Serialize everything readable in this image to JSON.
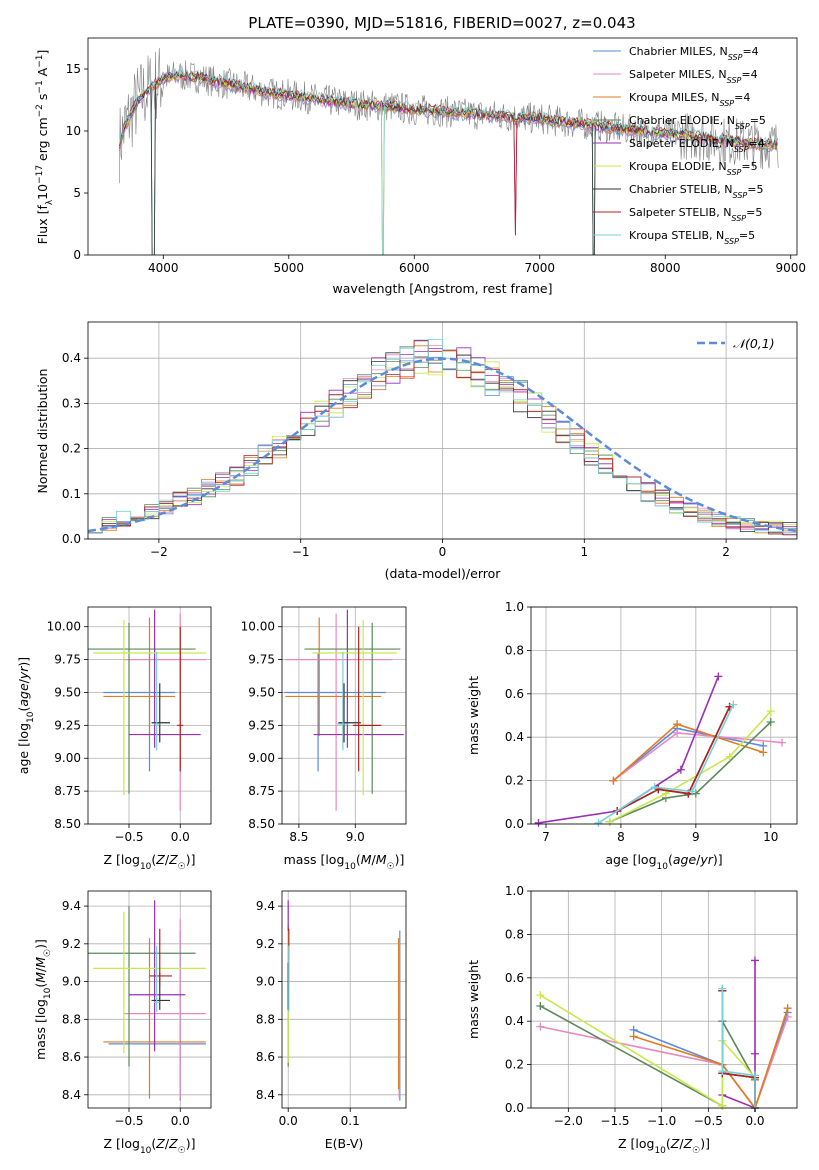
{
  "figure": {
    "title": "PLATE=0390, MJD=51816, FIBERID=0027, z=0.043"
  },
  "colors": {
    "Chabrier MILES": "#5b8bdc",
    "Salpeter MILES": "#e78ac3",
    "Kroupa MILES": "#e07b20",
    "Chabrier ELODIE": "#5a8a5a",
    "Salpeter ELODIE": "#9a2fb5",
    "Kroupa ELODIE": "#c8e84a",
    "Chabrier STELIB": "#333333",
    "Salpeter STELIB": "#b22222",
    "Kroupa STELIB": "#78d0d8",
    "data": "#808080",
    "normal": "#5b8bdc"
  },
  "chart_data": [
    {
      "id": "spectrum",
      "type": "line",
      "xlabel": "wavelength [Angstrom, rest frame]",
      "ylabel": "Flux [f_λ10^-17 erg cm^-2 s^-1 A^-1]",
      "xlim": [
        3400,
        9050
      ],
      "ylim": [
        0,
        17.5
      ],
      "xticks": [
        4000,
        5000,
        6000,
        7000,
        8000,
        9000
      ],
      "yticks": [
        0,
        5,
        10,
        15
      ],
      "legend_loc": "right",
      "legend": [
        {
          "name": "Chabrier MILES",
          "nssp": "4"
        },
        {
          "name": "Salpeter MILES",
          "nssp": "4"
        },
        {
          "name": "Kroupa MILES",
          "nssp": "4"
        },
        {
          "name": "Chabrier ELODIE",
          "nssp": "5"
        },
        {
          "name": "Salpeter ELODIE",
          "nssp": "4"
        },
        {
          "name": "Kroupa ELODIE",
          "nssp": "5"
        },
        {
          "name": "Chabrier STELIB",
          "nssp": "5"
        },
        {
          "name": "Salpeter STELIB",
          "nssp": "5"
        },
        {
          "name": "Kroupa STELIB",
          "nssp": "5"
        }
      ],
      "continuum": {
        "x": [
          3650,
          3700,
          3800,
          3900,
          4000,
          4100,
          4200,
          4300,
          4400,
          4500,
          4600,
          4700,
          4800,
          4900,
          5000,
          5200,
          5400,
          5600,
          5800,
          6000,
          6200,
          6400,
          6600,
          6800,
          7000,
          7200,
          7400,
          7600,
          7800,
          8000,
          8200,
          8400,
          8600,
          8800
        ],
        "y": [
          9.0,
          10.5,
          12.5,
          13.5,
          14.2,
          14.5,
          14.4,
          14.3,
          14.0,
          13.8,
          13.6,
          13.4,
          13.2,
          13.0,
          12.9,
          12.6,
          12.3,
          12.1,
          12.0,
          11.7,
          11.6,
          11.4,
          11.3,
          11.1,
          11.0,
          10.7,
          10.5,
          10.2,
          10.0,
          9.8,
          9.6,
          9.3,
          9.1,
          8.9
        ]
      },
      "model_dips": [
        {
          "x": 3920,
          "depth": 17.5
        },
        {
          "x": 5755,
          "depth": 17.5
        },
        {
          "x": 6810,
          "depth": 9.5
        },
        {
          "x": 7430,
          "depth": 17.5
        }
      ]
    },
    {
      "id": "residuals",
      "type": "line",
      "xlabel": "(data-model)/error",
      "ylabel": "Normed distribution",
      "xlim": [
        -2.5,
        2.5
      ],
      "ylim": [
        0,
        0.48
      ],
      "xticks": [
        -2,
        -1,
        0,
        1,
        2
      ],
      "yticks": [
        0.0,
        0.1,
        0.2,
        0.3,
        0.4
      ],
      "legend_label": "𝒩(0,1)",
      "legend_loc": "top-right",
      "bins_center": [
        -2.45,
        -2.35,
        -2.25,
        -2.15,
        -2.05,
        -1.95,
        -1.85,
        -1.75,
        -1.65,
        -1.55,
        -1.45,
        -1.35,
        -1.25,
        -1.15,
        -1.05,
        -0.95,
        -0.85,
        -0.75,
        -0.65,
        -0.55,
        -0.45,
        -0.35,
        -0.25,
        -0.15,
        -0.05,
        0.05,
        0.15,
        0.25,
        0.35,
        0.45,
        0.55,
        0.65,
        0.75,
        0.85,
        0.95,
        1.05,
        1.15,
        1.25,
        1.35,
        1.45,
        1.55,
        1.65,
        1.75,
        1.85,
        1.95,
        2.05,
        2.15,
        2.25,
        2.35,
        2.45
      ],
      "hist_base": [
        0.03,
        0.035,
        0.045,
        0.055,
        0.06,
        0.07,
        0.085,
        0.095,
        0.115,
        0.125,
        0.14,
        0.16,
        0.185,
        0.205,
        0.235,
        0.255,
        0.275,
        0.3,
        0.325,
        0.345,
        0.365,
        0.385,
        0.395,
        0.4,
        0.405,
        0.4,
        0.39,
        0.375,
        0.355,
        0.335,
        0.315,
        0.29,
        0.265,
        0.24,
        0.215,
        0.19,
        0.165,
        0.145,
        0.125,
        0.105,
        0.09,
        0.075,
        0.062,
        0.052,
        0.044,
        0.038,
        0.032,
        0.028,
        0.024,
        0.022
      ]
    },
    {
      "id": "age-Z",
      "type": "scatter",
      "xlabel": "Z [log10(Z/Z☉)]",
      "ylabel": "age [log10(age/yr)]",
      "xlim": [
        -0.9,
        0.3
      ],
      "ylim": [
        8.5,
        10.15
      ],
      "xticks": [
        -0.5,
        0.0
      ],
      "yticks": [
        8.5,
        8.75,
        9.0,
        9.25,
        9.5,
        9.75,
        10.0
      ],
      "points": [
        {
          "model": "Chabrier MILES",
          "x": -0.3,
          "xerr": [
            0.45,
            0.25
          ],
          "y": 9.5,
          "yerr": [
            0.6,
            0.3
          ]
        },
        {
          "model": "Salpeter MILES",
          "x": 0.0,
          "xerr": [
            0.55,
            0.25
          ],
          "y": 9.75,
          "yerr": [
            1.15,
            0.35
          ]
        },
        {
          "model": "Kroupa MILES",
          "x": -0.3,
          "xerr": [
            0.45,
            0.25
          ],
          "y": 9.47,
          "yerr": [
            0.3,
            0.6
          ]
        },
        {
          "model": "Chabrier ELODIE",
          "x": -0.5,
          "xerr": [
            0.4,
            0.65
          ],
          "y": 9.83,
          "yerr": [
            1.1,
            0.2
          ]
        },
        {
          "model": "Salpeter ELODIE",
          "x": -0.25,
          "xerr": [
            0.25,
            0.45
          ],
          "y": 9.18,
          "yerr": [
            0.1,
            0.95
          ]
        },
        {
          "model": "Kroupa ELODIE",
          "x": -0.55,
          "xerr": [
            0.3,
            0.8
          ],
          "y": 9.8,
          "yerr": [
            1.08,
            0.25
          ]
        },
        {
          "model": "Chabrier STELIB",
          "x": -0.2,
          "xerr": [
            0.08,
            0.1
          ],
          "y": 9.27,
          "yerr": [
            0.15,
            0.3
          ]
        },
        {
          "model": "Salpeter STELIB",
          "x": 0.0,
          "xerr": [
            0.03,
            0.03
          ],
          "y": 9.25,
          "yerr": [
            0.35,
            0.75
          ]
        },
        {
          "model": "Kroupa STELIB",
          "x": -0.23,
          "xerr": [
            0.03,
            0.03
          ],
          "y": 9.26,
          "yerr": [
            0.2,
            0.55
          ]
        }
      ]
    },
    {
      "id": "age-mass",
      "type": "scatter",
      "xlabel": "mass [log10(M/M☉)]",
      "ylabel": "",
      "xlim": [
        8.35,
        9.45
      ],
      "ylim": [
        8.5,
        10.15
      ],
      "xticks": [
        8.5,
        9.0
      ],
      "yticks": [
        8.5,
        8.75,
        9.0,
        9.25,
        9.5,
        9.75,
        10.0
      ],
      "points": [
        {
          "model": "Chabrier MILES",
          "x": 8.67,
          "xerr": [
            0.3,
            0.6
          ],
          "y": 9.5,
          "yerr": [
            0.6,
            0.3
          ]
        },
        {
          "model": "Salpeter MILES",
          "x": 8.83,
          "xerr": [
            0.45,
            0.5
          ],
          "y": 9.75,
          "yerr": [
            1.15,
            0.35
          ]
        },
        {
          "model": "Kroupa MILES",
          "x": 8.68,
          "xerr": [
            0.3,
            0.55
          ],
          "y": 9.47,
          "yerr": [
            0.3,
            0.6
          ]
        },
        {
          "model": "Chabrier ELODIE",
          "x": 9.15,
          "xerr": [
            0.6,
            0.25
          ],
          "y": 9.83,
          "yerr": [
            1.1,
            0.2
          ]
        },
        {
          "model": "Salpeter ELODIE",
          "x": 8.93,
          "xerr": [
            0.3,
            0.5
          ],
          "y": 9.18,
          "yerr": [
            0.1,
            0.95
          ]
        },
        {
          "model": "Kroupa ELODIE",
          "x": 9.07,
          "xerr": [
            0.45,
            0.3
          ],
          "y": 9.8,
          "yerr": [
            1.08,
            0.25
          ]
        },
        {
          "model": "Chabrier STELIB",
          "x": 8.9,
          "xerr": [
            0.05,
            0.15
          ],
          "y": 9.27,
          "yerr": [
            0.15,
            0.3
          ]
        },
        {
          "model": "Salpeter STELIB",
          "x": 9.03,
          "xerr": [
            0.05,
            0.2
          ],
          "y": 9.25,
          "yerr": [
            0.35,
            0.75
          ]
        },
        {
          "model": "Kroupa STELIB",
          "x": 8.89,
          "xerr": [
            0.05,
            0.05
          ],
          "y": 9.26,
          "yerr": [
            0.2,
            0.55
          ]
        }
      ]
    },
    {
      "id": "mass-Z",
      "type": "scatter",
      "xlabel": "Z [log10(Z/Z☉)]",
      "ylabel": "mass [log10(M/M☉)]",
      "xlim": [
        -0.9,
        0.3
      ],
      "ylim": [
        8.33,
        9.48
      ],
      "xticks": [
        -0.5,
        0.0
      ],
      "yticks": [
        8.4,
        8.6,
        8.8,
        9.0,
        9.2,
        9.4
      ],
      "points": [
        {
          "model": "Chabrier MILES",
          "x": 0.0,
          "xerr": [
            0.7,
            0.25
          ],
          "y": 8.67,
          "yerr": [
            0.3,
            0.6
          ]
        },
        {
          "model": "Salpeter MILES",
          "x": 0.0,
          "xerr": [
            0.55,
            0.25
          ],
          "y": 8.83,
          "yerr": [
            0.45,
            0.5
          ]
        },
        {
          "model": "Kroupa MILES",
          "x": -0.3,
          "xerr": [
            0.45,
            0.55
          ],
          "y": 8.68,
          "yerr": [
            0.3,
            0.55
          ]
        },
        {
          "model": "Chabrier ELODIE",
          "x": -0.5,
          "xerr": [
            0.4,
            0.65
          ],
          "y": 9.15,
          "yerr": [
            0.6,
            0.25
          ]
        },
        {
          "model": "Salpeter ELODIE",
          "x": -0.25,
          "xerr": [
            0.25,
            0.3
          ],
          "y": 8.93,
          "yerr": [
            0.3,
            0.5
          ]
        },
        {
          "model": "Kroupa ELODIE",
          "x": -0.55,
          "xerr": [
            0.3,
            0.8
          ],
          "y": 9.07,
          "yerr": [
            0.45,
            0.3
          ]
        },
        {
          "model": "Chabrier STELIB",
          "x": -0.2,
          "xerr": [
            0.08,
            0.1
          ],
          "y": 8.9,
          "yerr": [
            0.05,
            0.15
          ]
        },
        {
          "model": "Salpeter STELIB",
          "x": -0.2,
          "xerr": [
            0.1,
            0.12
          ],
          "y": 9.03,
          "yerr": [
            0.05,
            0.25
          ]
        },
        {
          "model": "Kroupa STELIB",
          "x": -0.23,
          "xerr": [
            0.03,
            0.03
          ],
          "y": 8.89,
          "yerr": [
            0.05,
            0.3
          ]
        }
      ]
    },
    {
      "id": "mass-ebv",
      "type": "scatter",
      "xlabel": "E(B-V)",
      "ylabel": "",
      "xlim": [
        -0.01,
        0.19
      ],
      "ylim": [
        8.33,
        9.48
      ],
      "xticks": [
        0.0,
        0.1
      ],
      "yticks": [
        8.4,
        8.6,
        8.8,
        9.0,
        9.2,
        9.4
      ],
      "points": [
        {
          "model": "Chabrier MILES",
          "x": 0.18,
          "y": 8.67,
          "yerr": [
            0.3,
            0.6
          ]
        },
        {
          "model": "Salpeter MILES",
          "x": 0.179,
          "y": 8.83,
          "yerr": [
            0.45,
            0.4
          ]
        },
        {
          "model": "Kroupa MILES",
          "x": 0.178,
          "y": 8.68,
          "yerr": [
            0.25,
            0.55
          ]
        },
        {
          "model": "Chabrier ELODIE",
          "x": 0.0,
          "y": 9.15,
          "yerr": [
            0.6,
            0.15
          ]
        },
        {
          "model": "Salpeter ELODIE",
          "x": 0.0,
          "y": 8.93,
          "yerr": [
            0.05,
            0.5
          ]
        },
        {
          "model": "Kroupa ELODIE",
          "x": 0.0,
          "y": 9.07,
          "yerr": [
            0.5,
            0.2
          ]
        },
        {
          "model": "Chabrier STELIB",
          "x": 0.0,
          "y": 8.9,
          "yerr": [
            0.05,
            0.2
          ]
        },
        {
          "model": "Salpeter STELIB",
          "x": 0.001,
          "y": 9.03,
          "yerr": [
            0.05,
            0.25
          ]
        },
        {
          "model": "Kroupa STELIB",
          "x": 0.001,
          "y": 8.89,
          "yerr": [
            0.05,
            0.3
          ]
        }
      ]
    },
    {
      "id": "weight-age",
      "type": "line",
      "xlabel": "age [log10(age/yr)]",
      "ylabel": "mass weight",
      "xlim": [
        6.8,
        10.35
      ],
      "ylim": [
        0,
        1.0
      ],
      "xticks": [
        7,
        8,
        9,
        10
      ],
      "yticks": [
        0.0,
        0.2,
        0.4,
        0.6,
        0.8,
        1.0
      ],
      "series": [
        {
          "model": "Chabrier MILES",
          "x": [
            7.9,
            8.75,
            9.9
          ],
          "y": [
            0.2,
            0.44,
            0.36
          ]
        },
        {
          "model": "Salpeter MILES",
          "x": [
            7.9,
            8.75,
            10.15
          ],
          "y": [
            0.2,
            0.42,
            0.375
          ]
        },
        {
          "model": "Kroupa MILES",
          "x": [
            7.9,
            8.75,
            9.9
          ],
          "y": [
            0.2,
            0.46,
            0.33
          ]
        },
        {
          "model": "Chabrier ELODIE",
          "x": [
            7.85,
            8.6,
            9.0,
            10.0
          ],
          "y": [
            0.01,
            0.12,
            0.14,
            0.47
          ]
        },
        {
          "model": "Salpeter ELODIE",
          "x": [
            6.9,
            7.95,
            8.8,
            9.3
          ],
          "y": [
            0.005,
            0.06,
            0.25,
            0.68
          ]
        },
        {
          "model": "Kroupa ELODIE",
          "x": [
            7.85,
            8.6,
            9.45,
            10.0
          ],
          "y": [
            0.01,
            0.14,
            0.31,
            0.52
          ]
        },
        {
          "model": "Chabrier STELIB",
          "x": [
            7.95,
            8.5,
            8.9,
            9.45
          ],
          "y": [
            0.06,
            0.16,
            0.14,
            0.54
          ]
        },
        {
          "model": "Salpeter STELIB",
          "x": [
            7.95,
            8.5,
            8.9,
            9.45
          ],
          "y": [
            0.06,
            0.16,
            0.14,
            0.54
          ]
        },
        {
          "model": "Kroupa STELIB",
          "x": [
            7.7,
            8.45,
            8.95,
            9.5
          ],
          "y": [
            0.005,
            0.17,
            0.15,
            0.55
          ]
        }
      ]
    },
    {
      "id": "weight-Z",
      "type": "line",
      "xlabel": "Z [log10(Z/Z☉)]",
      "ylabel": "mass weight",
      "xlim": [
        -2.4,
        0.45
      ],
      "ylim": [
        0,
        1.0
      ],
      "xticks": [
        -2.0,
        -1.5,
        -1.0,
        -0.5,
        0.0
      ],
      "yticks": [
        0.0,
        0.2,
        0.4,
        0.6,
        0.8,
        1.0
      ],
      "series": [
        {
          "model": "Chabrier MILES",
          "x": [
            -1.3,
            -0.35,
            0.0,
            0.35
          ],
          "y": [
            0.36,
            0.2,
            0.0,
            0.44
          ]
        },
        {
          "model": "Salpeter MILES",
          "x": [
            -2.3,
            -0.35,
            0.0,
            0.35
          ],
          "y": [
            0.375,
            0.2,
            0.0,
            0.42
          ]
        },
        {
          "model": "Kroupa MILES",
          "x": [
            -1.3,
            -0.35,
            0.0,
            0.35
          ],
          "y": [
            0.33,
            0.2,
            0.0,
            0.46
          ]
        },
        {
          "model": "Chabrier ELODIE",
          "x": [
            -2.3,
            -0.35,
            -0.35,
            0.0
          ],
          "y": [
            0.47,
            0.01,
            0.4,
            0.13
          ]
        },
        {
          "model": "Salpeter ELODIE",
          "x": [
            -0.35,
            0.0,
            0.0,
            0.0
          ],
          "y": [
            0.06,
            0.0,
            0.25,
            0.68
          ]
        },
        {
          "model": "Kroupa ELODIE",
          "x": [
            -2.3,
            -0.35,
            -0.35,
            0.0
          ],
          "y": [
            0.52,
            0.01,
            0.31,
            0.14
          ]
        },
        {
          "model": "Chabrier STELIB",
          "x": [
            -0.35,
            -0.35,
            0.0,
            0.0
          ],
          "y": [
            0.54,
            0.16,
            0.14,
            0.0
          ]
        },
        {
          "model": "Salpeter STELIB",
          "x": [
            -0.35,
            -0.35,
            0.0,
            0.0
          ],
          "y": [
            0.54,
            0.16,
            0.14,
            0.0
          ]
        },
        {
          "model": "Kroupa STELIB",
          "x": [
            -0.35,
            -0.35,
            0.0,
            0.0
          ],
          "y": [
            0.55,
            0.17,
            0.15,
            0.0
          ]
        }
      ]
    }
  ]
}
